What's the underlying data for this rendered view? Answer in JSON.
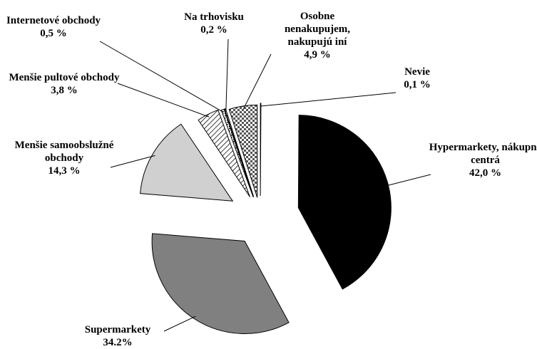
{
  "chart_data": {
    "type": "pie",
    "categories": [
      "Nevie",
      "Hypermarkety, nákupné centrá",
      "Supermarkety",
      "Menšie samoobslužné obchody",
      "Menšie pultové obchody",
      "Internetové obchody",
      "Na trhovisku",
      "Osobne nenakupujem, nakupujú iní"
    ],
    "values": [
      0.1,
      42.0,
      34.2,
      14.3,
      3.8,
      0.5,
      0.2,
      4.9
    ],
    "value_labels": [
      "0,1 %",
      "42,0 %",
      "34.2%",
      "14,3 %",
      "3,8 %",
      "0,5 %",
      "0,2 %",
      "4,9 %"
    ],
    "colors": [
      "#000000",
      "#000000",
      "#808080",
      "#d0d0d0",
      "url(#hatch)",
      "url(#dots)",
      "url(#dots)",
      "url(#check)"
    ]
  }
}
